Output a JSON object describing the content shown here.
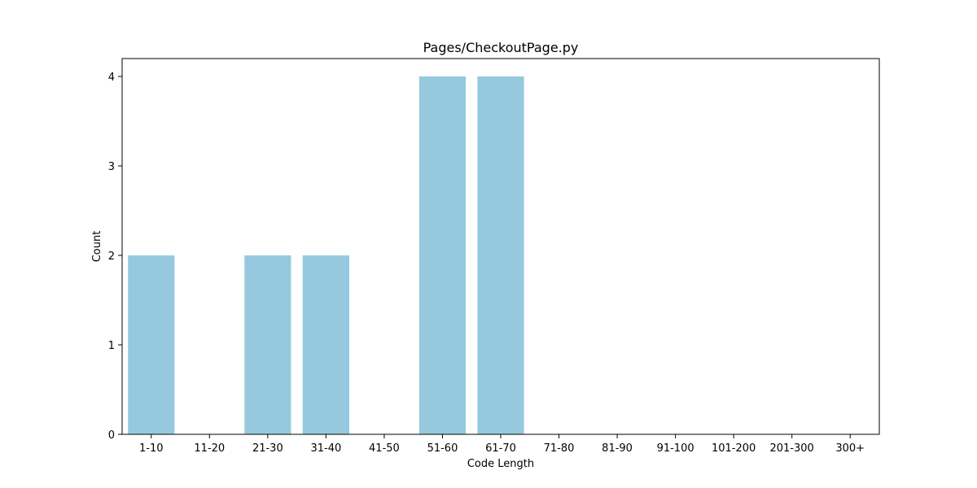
{
  "chart_data": {
    "type": "bar",
    "title": "Pages/CheckoutPage.py",
    "xlabel": "Code Length",
    "ylabel": "Count",
    "categories": [
      "1-10",
      "11-20",
      "21-30",
      "31-40",
      "41-50",
      "51-60",
      "61-70",
      "71-80",
      "81-90",
      "91-100",
      "101-200",
      "201-300",
      "300+"
    ],
    "values": [
      2,
      0,
      2,
      2,
      0,
      4,
      4,
      0,
      0,
      0,
      0,
      0,
      0
    ],
    "ylim": [
      0,
      4.2
    ],
    "yticks": [
      0,
      1,
      2,
      3,
      4
    ],
    "bar_color": "#96c9de",
    "grid": false,
    "legend": "none"
  }
}
